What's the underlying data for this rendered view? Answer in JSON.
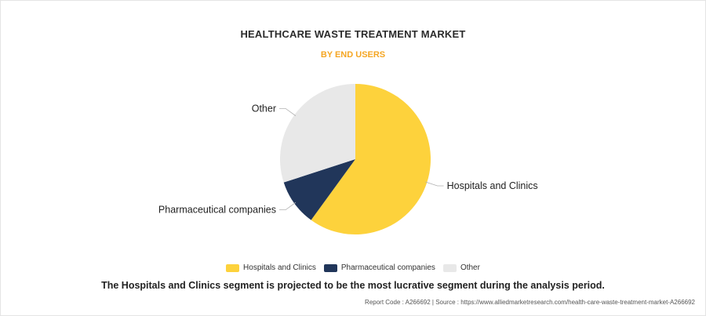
{
  "header": {
    "title": "HEALTHCARE WASTE TREATMENT MARKET",
    "subtitle": "BY END USERS"
  },
  "chart_data": {
    "type": "pie",
    "title": "HEALTHCARE WASTE TREATMENT MARKET",
    "subtitle": "BY END USERS",
    "categories": [
      "Hospitals and Clinics",
      "Pharmaceutical companies",
      "Other"
    ],
    "values": [
      60,
      10,
      30
    ],
    "colors": [
      "#fdd23c",
      "#21365a",
      "#e8e8e8"
    ],
    "legend_position": "bottom"
  },
  "legend": {
    "items": [
      {
        "label": "Hospitals and Clinics",
        "color": "#fdd23c"
      },
      {
        "label": "Pharmaceutical companies",
        "color": "#21365a"
      },
      {
        "label": "Other",
        "color": "#e8e8e8"
      }
    ]
  },
  "footer": {
    "statement": "The Hospitals and Clinics segment is projected to be the most lucrative segment during the analysis period.",
    "source": "Report Code : A266692  |  Source : https://www.alliedmarketresearch.com/health-care-waste-treatment-market-A266692"
  }
}
